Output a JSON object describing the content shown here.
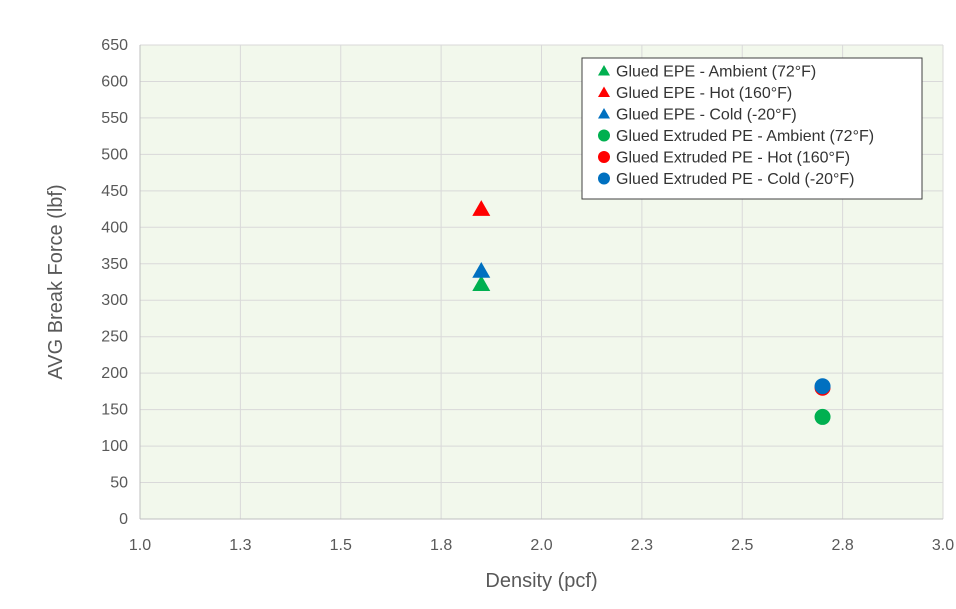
{
  "chart_data": {
    "type": "scatter",
    "title": "",
    "xlabel": "Density (pcf)",
    "ylabel": "AVG Break Force (lbf)",
    "xlim": [
      1.0,
      3.0
    ],
    "ylim": [
      0,
      650
    ],
    "x_ticks": [
      "1.0",
      "1.3",
      "1.5",
      "1.8",
      "2.0",
      "2.3",
      "2.5",
      "2.8",
      "3.0"
    ],
    "y_ticks": [
      "0",
      "50",
      "100",
      "150",
      "200",
      "250",
      "300",
      "350",
      "400",
      "450",
      "500",
      "550",
      "600",
      "650"
    ],
    "grid": true,
    "legend_position": "top-right",
    "plot_background": "#f2f8ec",
    "series": [
      {
        "name": "Glued EPE - Ambient (72°F)",
        "marker": "triangle",
        "color": "#00b050",
        "points": [
          {
            "x": 1.85,
            "y": 322
          }
        ]
      },
      {
        "name": "Glued EPE - Hot (160°F)",
        "marker": "triangle",
        "color": "#ff0000",
        "points": [
          {
            "x": 1.85,
            "y": 425
          }
        ]
      },
      {
        "name": "Glued EPE - Cold (-20°F)",
        "marker": "triangle",
        "color": "#0070c0",
        "points": [
          {
            "x": 1.85,
            "y": 340
          }
        ]
      },
      {
        "name": "Glued Extruded PE - Ambient (72°F)",
        "marker": "circle",
        "color": "#00b050",
        "points": [
          {
            "x": 2.7,
            "y": 140
          }
        ]
      },
      {
        "name": "Glued Extruded PE - Hot (160°F)",
        "marker": "circle",
        "color": "#ff0000",
        "points": [
          {
            "x": 2.7,
            "y": 180
          }
        ]
      },
      {
        "name": "Glued Extruded PE - Cold (-20°F)",
        "marker": "circle",
        "color": "#0070c0",
        "points": [
          {
            "x": 2.7,
            "y": 182
          }
        ]
      }
    ]
  }
}
